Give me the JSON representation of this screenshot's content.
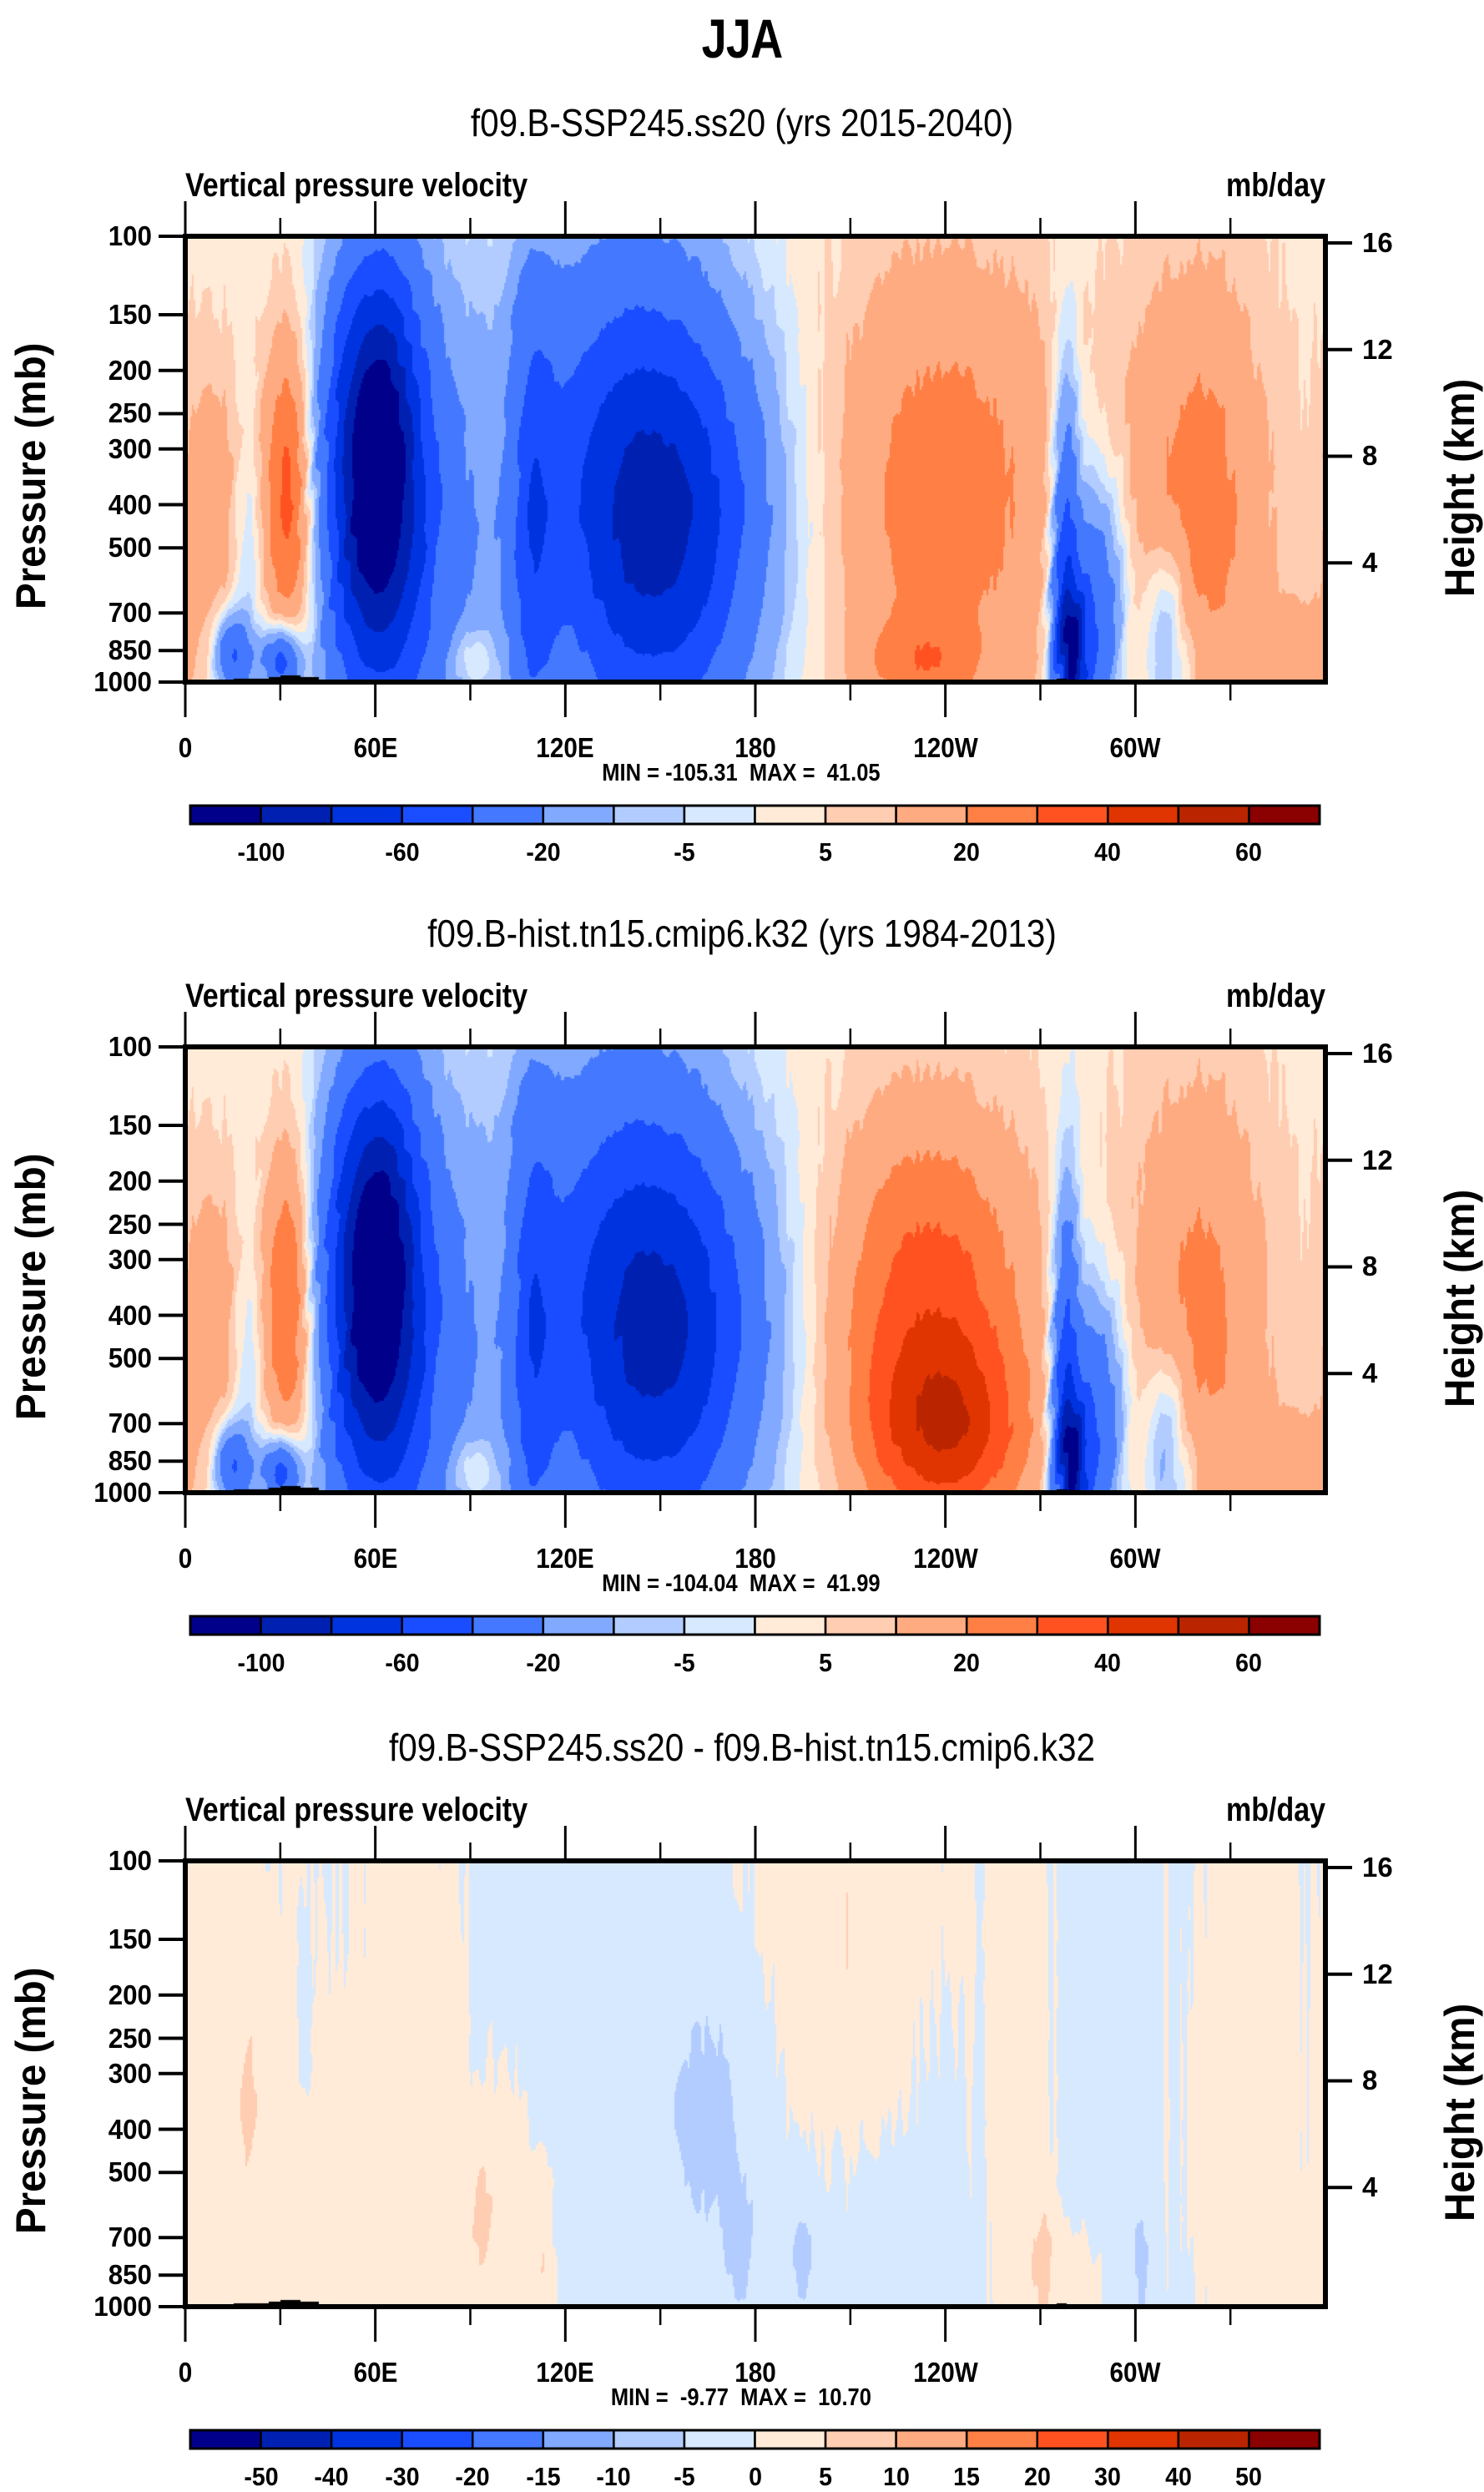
{
  "main_title": "JJA",
  "chart_data": [
    {
      "type": "heatmap",
      "subtype": "filled-contour pressure-longitude cross section",
      "title": "f09.B-SSP245.ss20 (yrs 2015-2040)",
      "left_string": "Vertical pressure velocity",
      "right_string": "mb/day",
      "xlabel": "",
      "ylabel": "Pressure (mb)",
      "ylabel_right": "Height (km)",
      "x_range": [
        0,
        360
      ],
      "x_ticks": [
        0,
        60,
        120,
        180,
        240,
        300
      ],
      "x_tick_labels": [
        "0",
        "60E",
        "120E",
        "180",
        "120W",
        "60W"
      ],
      "x_minor_ticks": [
        30,
        90,
        150,
        210,
        270,
        330
      ],
      "y_range": [
        1000,
        100
      ],
      "y_scale": "log",
      "y_ticks": [
        100,
        150,
        200,
        250,
        300,
        400,
        500,
        700,
        850,
        1000
      ],
      "y_tick_labels": [
        "100",
        "150",
        "200",
        "250",
        "300",
        "400",
        "500",
        "700",
        "850",
        "1000"
      ],
      "right_ticks": [
        16,
        12,
        8,
        4
      ],
      "right_tick_labels": [
        "16",
        "12",
        "8",
        "4"
      ],
      "stats_text": "MIN = -105.31  MAX =  41.05",
      "min": -105.31,
      "max": 41.05,
      "levels": [
        -100,
        -80,
        -60,
        -40,
        -20,
        -10,
        -5,
        0,
        5,
        10,
        20,
        30,
        40,
        50,
        60
      ],
      "colorbar_labels": [
        "-100",
        "",
        "-60",
        "",
        "-20",
        "",
        "-5",
        "",
        "5",
        "",
        "20",
        "",
        "40",
        "",
        "60"
      ],
      "colorbar": "horizontal-bottom",
      "base": 3,
      "features": [
        {
          "lon": 8,
          "p": 420,
          "dlon": 7,
          "dlnp": 0.55,
          "amp": 14
        },
        {
          "lon": 33,
          "p": 380,
          "dlon": 6,
          "dlnp": 0.6,
          "amp": 38
        },
        {
          "lon": 20,
          "p": 520,
          "dlon": 3,
          "dlnp": 0.5,
          "amp": -10
        },
        {
          "lon": 15,
          "p": 870,
          "dlon": 4,
          "dlnp": 0.15,
          "amp": -45
        },
        {
          "lon": 30,
          "p": 900,
          "dlon": 4,
          "dlnp": 0.12,
          "amp": -55
        },
        {
          "lon": 60,
          "p": 320,
          "dlon": 10,
          "dlnp": 0.7,
          "amp": -105
        },
        {
          "lon": 66,
          "p": 500,
          "dlon": 18,
          "dlnp": 1.0,
          "amp": -40
        },
        {
          "lon": 90,
          "p": 880,
          "dlon": 6,
          "dlnp": 0.12,
          "amp": 14
        },
        {
          "lon": 110,
          "p": 450,
          "dlon": 5,
          "dlnp": 0.9,
          "amp": -35
        },
        {
          "lon": 150,
          "p": 440,
          "dlon": 22,
          "dlnp": 0.75,
          "amp": -75
        },
        {
          "lon": 135,
          "p": 300,
          "dlon": 25,
          "dlnp": 1.1,
          "amp": -25
        },
        {
          "lon": 240,
          "p": 380,
          "dlon": 26,
          "dlnp": 0.85,
          "amp": 23
        },
        {
          "lon": 232,
          "p": 900,
          "dlon": 12,
          "dlnp": 0.15,
          "amp": 15
        },
        {
          "lon": 278,
          "p": 650,
          "dlon": 3,
          "dlnp": 0.8,
          "amp": -55
        },
        {
          "lon": 280,
          "p": 880,
          "dlon": 3,
          "dlnp": 0.25,
          "amp": -60
        },
        {
          "lon": 287,
          "p": 720,
          "dlon": 6,
          "dlnp": 0.5,
          "amp": -45
        },
        {
          "lon": 310,
          "p": 800,
          "dlon": 5,
          "dlnp": 0.35,
          "amp": -25
        },
        {
          "lon": 320,
          "p": 400,
          "dlon": 15,
          "dlnp": 0.85,
          "amp": 22
        },
        {
          "lon": 350,
          "p": 880,
          "dlon": 8,
          "dlnp": 0.2,
          "amp": 14
        }
      ]
    },
    {
      "type": "heatmap",
      "subtype": "filled-contour pressure-longitude cross section",
      "title": "f09.B-hist.tn15.cmip6.k32 (yrs 1984-2013)",
      "left_string": "Vertical pressure velocity",
      "right_string": "mb/day",
      "xlabel": "",
      "ylabel": "Pressure (mb)",
      "ylabel_right": "Height (km)",
      "x_range": [
        0,
        360
      ],
      "x_ticks": [
        0,
        60,
        120,
        180,
        240,
        300
      ],
      "x_tick_labels": [
        "0",
        "60E",
        "120E",
        "180",
        "120W",
        "60W"
      ],
      "x_minor_ticks": [
        30,
        90,
        150,
        210,
        270,
        330
      ],
      "y_range": [
        1000,
        100
      ],
      "y_scale": "log",
      "y_ticks": [
        100,
        150,
        200,
        250,
        300,
        400,
        500,
        700,
        850,
        1000
      ],
      "y_tick_labels": [
        "100",
        "150",
        "200",
        "250",
        "300",
        "400",
        "500",
        "700",
        "850",
        "1000"
      ],
      "right_ticks": [
        16,
        12,
        8,
        4
      ],
      "right_tick_labels": [
        "16",
        "12",
        "8",
        "4"
      ],
      "stats_text": "MIN = -104.04  MAX =  41.99",
      "min": -104.04,
      "max": 41.99,
      "levels": [
        -100,
        -80,
        -60,
        -40,
        -20,
        -10,
        -5,
        0,
        5,
        10,
        20,
        30,
        40,
        50,
        60
      ],
      "colorbar_labels": [
        "-100",
        "",
        "-60",
        "",
        "-20",
        "",
        "-5",
        "",
        "5",
        "",
        "20",
        "",
        "40",
        "",
        "60"
      ],
      "colorbar": "horizontal-bottom",
      "base": 3,
      "features": [
        {
          "lon": 8,
          "p": 420,
          "dlon": 7,
          "dlnp": 0.55,
          "amp": 14
        },
        {
          "lon": 33,
          "p": 380,
          "dlon": 6,
          "dlnp": 0.6,
          "amp": 35
        },
        {
          "lon": 20,
          "p": 520,
          "dlon": 3,
          "dlnp": 0.5,
          "amp": -10
        },
        {
          "lon": 15,
          "p": 870,
          "dlon": 4,
          "dlnp": 0.15,
          "amp": -45
        },
        {
          "lon": 30,
          "p": 900,
          "dlon": 4,
          "dlnp": 0.12,
          "amp": -55
        },
        {
          "lon": 60,
          "p": 320,
          "dlon": 10,
          "dlnp": 0.7,
          "amp": -104
        },
        {
          "lon": 66,
          "p": 500,
          "dlon": 18,
          "dlnp": 1.0,
          "amp": -40
        },
        {
          "lon": 90,
          "p": 880,
          "dlon": 6,
          "dlnp": 0.12,
          "amp": 14
        },
        {
          "lon": 110,
          "p": 450,
          "dlon": 5,
          "dlnp": 0.9,
          "amp": -35
        },
        {
          "lon": 150,
          "p": 440,
          "dlon": 22,
          "dlnp": 0.75,
          "amp": -72
        },
        {
          "lon": 135,
          "p": 300,
          "dlon": 25,
          "dlnp": 1.1,
          "amp": -25
        },
        {
          "lon": 235,
          "p": 380,
          "dlon": 22,
          "dlnp": 0.7,
          "amp": 32
        },
        {
          "lon": 240,
          "p": 750,
          "dlon": 18,
          "dlnp": 0.35,
          "amp": 30
        },
        {
          "lon": 278,
          "p": 650,
          "dlon": 3,
          "dlnp": 0.8,
          "amp": -55
        },
        {
          "lon": 280,
          "p": 880,
          "dlon": 3,
          "dlnp": 0.25,
          "amp": -60
        },
        {
          "lon": 287,
          "p": 720,
          "dlon": 6,
          "dlnp": 0.5,
          "amp": -45
        },
        {
          "lon": 310,
          "p": 800,
          "dlon": 5,
          "dlnp": 0.35,
          "amp": -25
        },
        {
          "lon": 320,
          "p": 400,
          "dlon": 15,
          "dlnp": 0.85,
          "amp": 20
        },
        {
          "lon": 350,
          "p": 880,
          "dlon": 8,
          "dlnp": 0.2,
          "amp": 14
        }
      ]
    },
    {
      "type": "heatmap",
      "subtype": "filled-contour pressure-longitude cross section (difference)",
      "title": "f09.B-SSP245.ss20 - f09.B-hist.tn15.cmip6.k32",
      "left_string": "Vertical pressure velocity",
      "right_string": "mb/day",
      "xlabel": "",
      "ylabel": "Pressure (mb)",
      "ylabel_right": "Height (km)",
      "x_range": [
        0,
        360
      ],
      "x_ticks": [
        0,
        60,
        120,
        180,
        240,
        300
      ],
      "x_tick_labels": [
        "0",
        "60E",
        "120E",
        "180",
        "120W",
        "60W"
      ],
      "x_minor_ticks": [
        30,
        90,
        150,
        210,
        270,
        330
      ],
      "y_range": [
        1000,
        100
      ],
      "y_scale": "log",
      "y_ticks": [
        100,
        150,
        200,
        250,
        300,
        400,
        500,
        700,
        850,
        1000
      ],
      "y_tick_labels": [
        "100",
        "150",
        "200",
        "250",
        "300",
        "400",
        "500",
        "700",
        "850",
        "1000"
      ],
      "right_ticks": [
        16,
        12,
        8,
        4
      ],
      "right_tick_labels": [
        "16",
        "12",
        "8",
        "4"
      ],
      "stats_text": "MIN =  -9.77  MAX =  10.70",
      "min": -9.77,
      "max": 10.7,
      "levels": [
        -50,
        -40,
        -30,
        -20,
        -15,
        -10,
        -5,
        0,
        5,
        10,
        15,
        20,
        30,
        40,
        50
      ],
      "colorbar_labels": [
        "-50",
        "-40",
        "-30",
        "-20",
        "-15",
        "-10",
        "-5",
        "0",
        "5",
        "10",
        "15",
        "20",
        "30",
        "40",
        "50"
      ],
      "colorbar": "horizontal-bottom",
      "base": -1,
      "features": [
        {
          "lon": 8,
          "p": 250,
          "dlon": 6,
          "dlnp": 1.0,
          "amp": 3
        },
        {
          "lon": 22,
          "p": 460,
          "dlon": 6,
          "dlnp": 1.2,
          "amp": 4
        },
        {
          "lon": 20,
          "p": 330,
          "dlon": 1.5,
          "dlnp": 0.25,
          "amp": 5
        },
        {
          "lon": 40,
          "p": 600,
          "dlon": 8,
          "dlnp": 1.3,
          "amp": 3
        },
        {
          "lon": 38,
          "p": 220,
          "dlon": 1.5,
          "dlnp": 0.3,
          "amp": -5
        },
        {
          "lon": 62,
          "p": 400,
          "dlon": 5,
          "dlnp": 1.4,
          "amp": 3
        },
        {
          "lon": 80,
          "p": 500,
          "dlon": 8,
          "dlnp": 1.4,
          "amp": 3.5
        },
        {
          "lon": 100,
          "p": 700,
          "dlon": 5,
          "dlnp": 0.5,
          "amp": 4
        },
        {
          "lon": 93,
          "p": 620,
          "dlon": 2,
          "dlnp": 0.25,
          "amp": 7
        },
        {
          "lon": 108,
          "p": 800,
          "dlon": 4,
          "dlnp": 0.4,
          "amp": 3
        },
        {
          "lon": 114,
          "p": 800,
          "dlon": 1.5,
          "dlnp": 0.3,
          "amp": 5
        },
        {
          "lon": 165,
          "p": 380,
          "dlon": 10,
          "dlnp": 0.5,
          "amp": -6
        },
        {
          "lon": 175,
          "p": 760,
          "dlon": 3,
          "dlnp": 0.25,
          "amp": -6
        },
        {
          "lon": 195,
          "p": 780,
          "dlon": 3,
          "dlnp": 0.25,
          "amp": -6
        },
        {
          "lon": 205,
          "p": 180,
          "dlon": 12,
          "dlnp": 0.6,
          "amp": 3
        },
        {
          "lon": 215,
          "p": 120,
          "dlon": 22,
          "dlnp": 0.6,
          "amp": 3
        },
        {
          "lon": 262,
          "p": 300,
          "dlon": 8,
          "dlnp": 1.3,
          "amp": 3
        },
        {
          "lon": 268,
          "p": 820,
          "dlon": 4,
          "dlnp": 0.35,
          "amp": 4
        },
        {
          "lon": 272,
          "p": 820,
          "dlon": 1.5,
          "dlnp": 0.25,
          "amp": 6
        },
        {
          "lon": 282,
          "p": 900,
          "dlon": 4,
          "dlnp": 0.2,
          "amp": 3
        },
        {
          "lon": 302,
          "p": 810,
          "dlon": 2,
          "dlnp": 0.3,
          "amp": -6
        },
        {
          "lon": 335,
          "p": 300,
          "dlon": 14,
          "dlnp": 1.3,
          "amp": 3.2
        },
        {
          "lon": 355,
          "p": 900,
          "dlon": 3,
          "dlnp": 0.25,
          "amp": 3
        }
      ]
    }
  ],
  "colors": {
    "palette": [
      "#00008b",
      "#0020b2",
      "#0033e0",
      "#1a4dff",
      "#4479ff",
      "#80a9ff",
      "#b3ccff",
      "#d6e9ff",
      "#ffebd8",
      "#ffcdb1",
      "#ffab81",
      "#ff7f45",
      "#ff5220",
      "#e03500",
      "#ba2500",
      "#8b0000"
    ],
    "topography": "#000000"
  }
}
